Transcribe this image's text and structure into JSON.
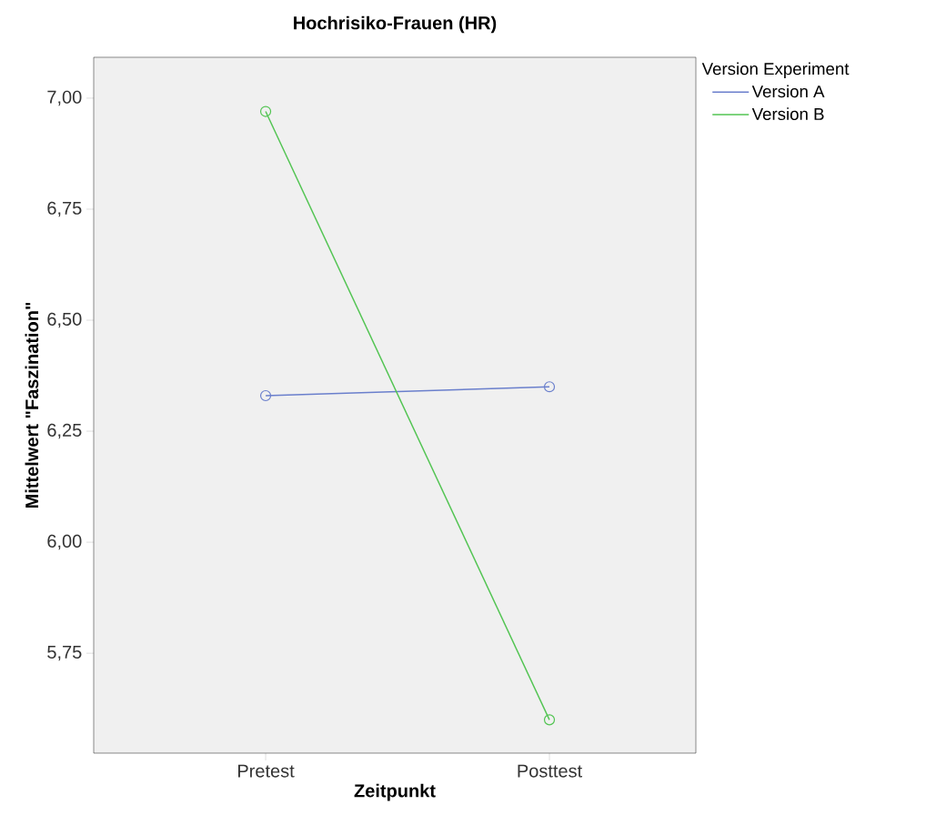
{
  "chart_data": {
    "type": "line",
    "title": "Hochrisiko-Frauen (HR)",
    "xlabel": "Zeitpunkt",
    "ylabel": "Mittelwert \"Faszination\"",
    "legend_title": "Version Experiment",
    "categories": [
      "Pretest",
      "Posttest"
    ],
    "series": [
      {
        "name": "Version A",
        "color": "#6a7fcc",
        "values": [
          6.33,
          6.35
        ]
      },
      {
        "name": "Version B",
        "color": "#52c452",
        "values": [
          6.97,
          5.6
        ]
      }
    ],
    "ylim": [
      5.525,
      7.092
    ],
    "yticks": [
      {
        "value": 5.75,
        "label": "5,75"
      },
      {
        "value": 6.0,
        "label": "6,00"
      },
      {
        "value": 6.25,
        "label": "6,25"
      },
      {
        "value": 6.5,
        "label": "6,50"
      },
      {
        "value": 6.75,
        "label": "6,75"
      },
      {
        "value": 7.0,
        "label": "7,00"
      }
    ],
    "marker": "circle",
    "legend": "top right"
  }
}
